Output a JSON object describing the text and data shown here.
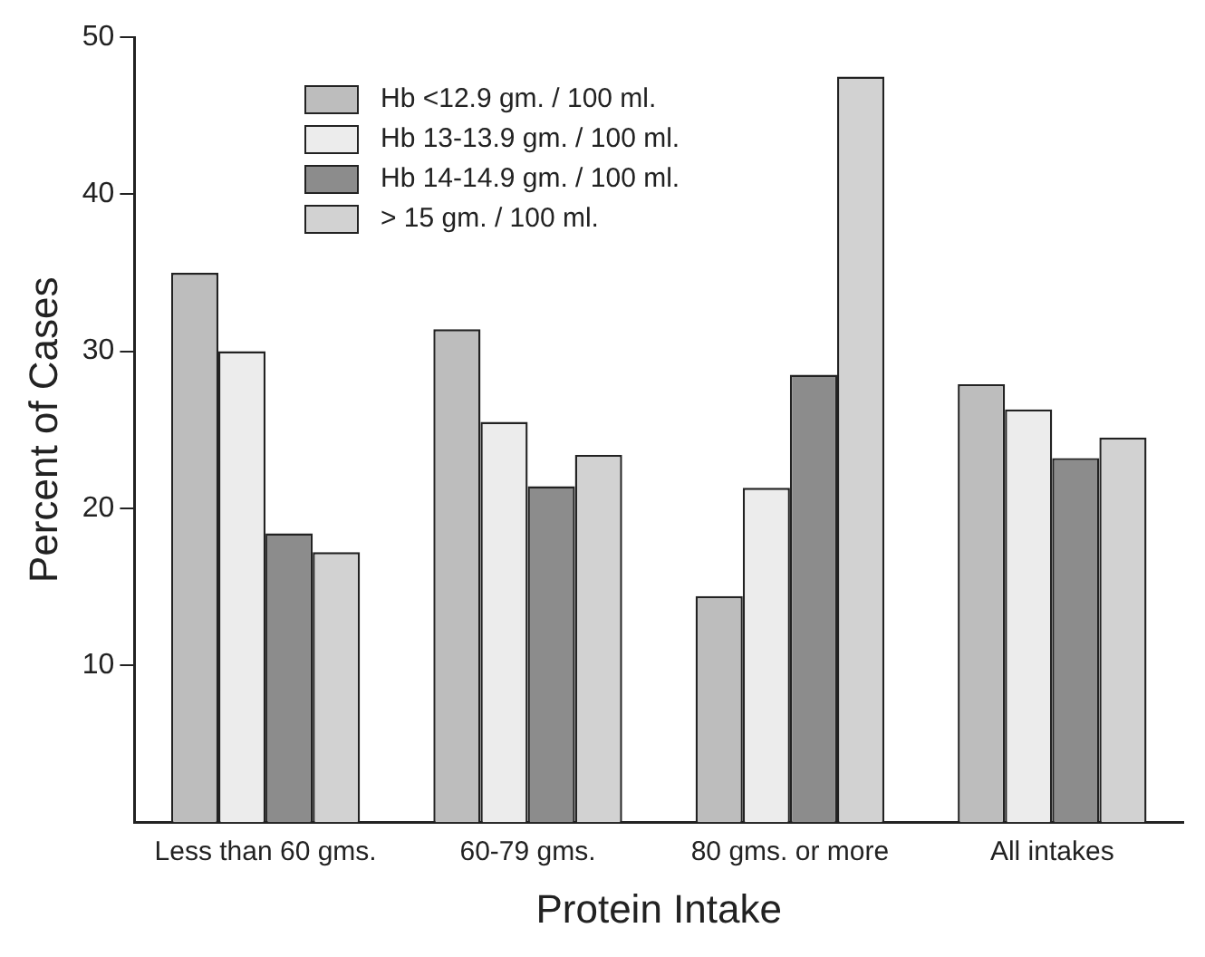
{
  "chart_data": {
    "type": "bar",
    "xlabel": "Protein Intake",
    "ylabel": "Percent of Cases",
    "categories": [
      "Less than 60 gms.",
      "60-79 gms.",
      "80 gms. or more",
      "All intakes"
    ],
    "series": [
      {
        "name": "Hb <12.9 gm. / 100 ml.",
        "color": "#bdbdbd",
        "values": [
          35.0,
          31.4,
          14.4,
          27.9
        ]
      },
      {
        "name": "Hb 13-13.9 gm. / 100 ml.",
        "color": "#ececec",
        "values": [
          30.0,
          25.5,
          21.3,
          26.3
        ]
      },
      {
        "name": "Hb 14-14.9 gm. / 100 ml.",
        "color": "#8c8c8c",
        "values": [
          18.4,
          21.4,
          28.5,
          23.2
        ]
      },
      {
        "name": "> 15 gm. / 100 ml.",
        "color": "#d2d2d2",
        "values": [
          17.2,
          23.4,
          47.5,
          24.5
        ]
      }
    ],
    "ylim": [
      0,
      50
    ],
    "yticks": [
      10,
      20,
      30,
      40,
      50
    ],
    "grid": false,
    "legend": "top left"
  }
}
